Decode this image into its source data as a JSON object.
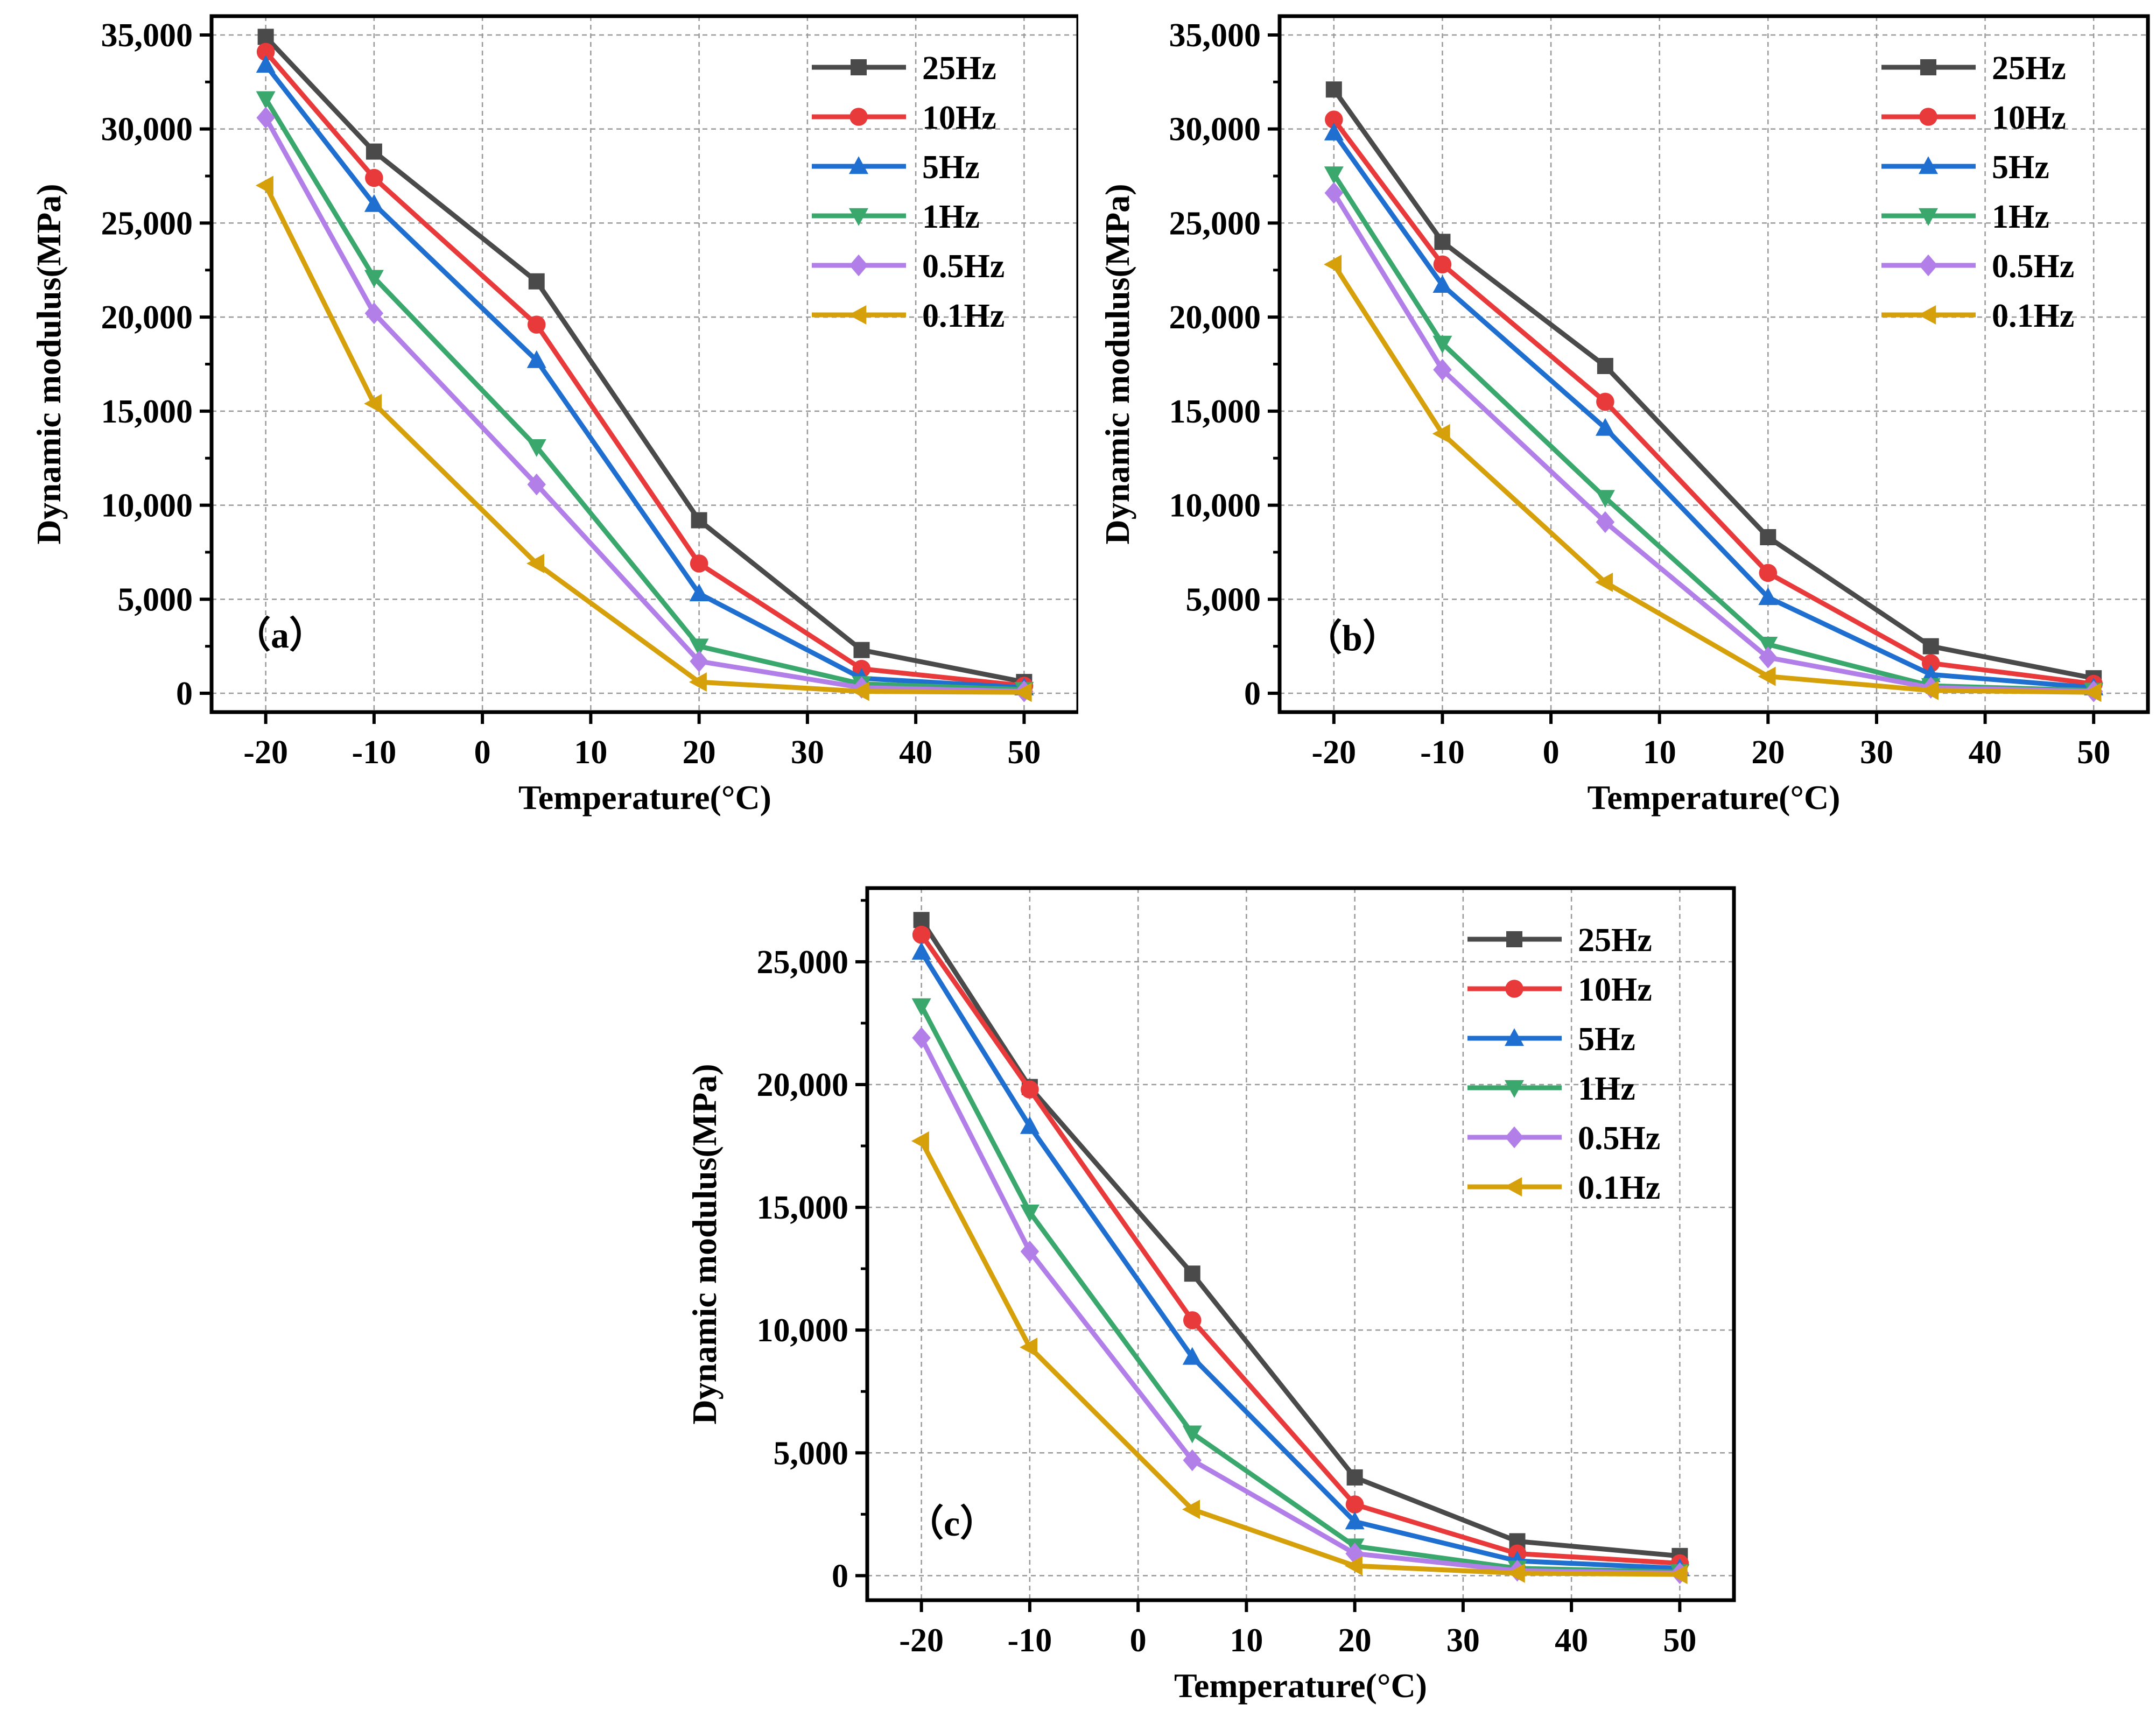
{
  "chart_data": [
    {
      "type": "line",
      "panel_label": "（a）",
      "xlabel": "Temperature(°C)",
      "ylabel": "Dynamic modulus(MPa)",
      "xlim": [
        -25,
        55
      ],
      "ylim": [
        -1000,
        36000
      ],
      "xticks": [
        -20,
        -10,
        0,
        10,
        20,
        30,
        40,
        50
      ],
      "yticks": [
        0,
        5000,
        10000,
        15000,
        20000,
        25000,
        30000,
        35000
      ],
      "ytick_labels": [
        "0",
        "5,000",
        "10,000",
        "15,000",
        "20,000",
        "25,000",
        "30,000",
        "35,000"
      ],
      "legend_position": "top-right",
      "grid": true,
      "x": [
        -20,
        -10,
        5,
        20,
        35,
        50
      ],
      "series": [
        {
          "name": "25Hz",
          "color": "#4a4a4a",
          "marker": "square",
          "values": [
            34900,
            28800,
            21900,
            9200,
            2300,
            600
          ]
        },
        {
          "name": "10Hz",
          "color": "#e8393b",
          "marker": "circle",
          "values": [
            34100,
            27400,
            19600,
            6900,
            1300,
            400
          ]
        },
        {
          "name": "5Hz",
          "color": "#1f6fd0",
          "marker": "triangle-up",
          "values": [
            33400,
            26000,
            17700,
            5300,
            800,
            300
          ]
        },
        {
          "name": "1Hz",
          "color": "#3aa76d",
          "marker": "triangle-down",
          "values": [
            31600,
            22100,
            13100,
            2500,
            500,
            200
          ]
        },
        {
          "name": "0.5Hz",
          "color": "#b27ee8",
          "marker": "diamond",
          "values": [
            30600,
            20200,
            11100,
            1700,
            300,
            100
          ]
        },
        {
          "name": "0.1Hz",
          "color": "#d6a00b",
          "marker": "triangle-left",
          "values": [
            27000,
            15400,
            6900,
            600,
            100,
            50
          ]
        }
      ]
    },
    {
      "type": "line",
      "panel_label": "（b）",
      "xlabel": "Temperature(°C)",
      "ylabel": "Dynamic modulus(MPa)",
      "xlim": [
        -25,
        55
      ],
      "ylim": [
        -1000,
        36000
      ],
      "xticks": [
        -20,
        -10,
        0,
        10,
        20,
        30,
        40,
        50
      ],
      "yticks": [
        0,
        5000,
        10000,
        15000,
        20000,
        25000,
        30000,
        35000
      ],
      "ytick_labels": [
        "0",
        "5,000",
        "10,000",
        "15,000",
        "20,000",
        "25,000",
        "30,000",
        "35,000"
      ],
      "legend_position": "top-right",
      "grid": true,
      "x": [
        -20,
        -10,
        5,
        20,
        35,
        50
      ],
      "series": [
        {
          "name": "25Hz",
          "color": "#4a4a4a",
          "marker": "square",
          "values": [
            32100,
            24000,
            17400,
            8300,
            2500,
            800
          ]
        },
        {
          "name": "10Hz",
          "color": "#e8393b",
          "marker": "circle",
          "values": [
            30500,
            22800,
            15500,
            6400,
            1600,
            500
          ]
        },
        {
          "name": "5Hz",
          "color": "#1f6fd0",
          "marker": "triangle-up",
          "values": [
            29800,
            21700,
            14100,
            5100,
            1000,
            300
          ]
        },
        {
          "name": "1Hz",
          "color": "#3aa76d",
          "marker": "triangle-down",
          "values": [
            27600,
            18600,
            10400,
            2600,
            400,
            150
          ]
        },
        {
          "name": "0.5Hz",
          "color": "#b27ee8",
          "marker": "diamond",
          "values": [
            26600,
            17200,
            9100,
            1900,
            300,
            100
          ]
        },
        {
          "name": "0.1Hz",
          "color": "#d6a00b",
          "marker": "triangle-left",
          "values": [
            22800,
            13800,
            5900,
            900,
            150,
            50
          ]
        }
      ]
    },
    {
      "type": "line",
      "panel_label": "（c）",
      "xlabel": "Temperature(°C)",
      "ylabel": "Dynamic modulus(MPa)",
      "xlim": [
        -25,
        55
      ],
      "ylim": [
        -1000,
        28000
      ],
      "xticks": [
        -20,
        -10,
        0,
        10,
        20,
        30,
        40,
        50
      ],
      "yticks": [
        0,
        5000,
        10000,
        15000,
        20000,
        25000
      ],
      "ytick_labels": [
        "0",
        "5,000",
        "10,000",
        "15,000",
        "20,000",
        "25,000"
      ],
      "legend_position": "top-right",
      "grid": true,
      "x": [
        -20,
        -10,
        5,
        20,
        35,
        50
      ],
      "series": [
        {
          "name": "25Hz",
          "color": "#4a4a4a",
          "marker": "square",
          "values": [
            26700,
            19900,
            12300,
            4000,
            1400,
            800
          ]
        },
        {
          "name": "10Hz",
          "color": "#e8393b",
          "marker": "circle",
          "values": [
            26100,
            19800,
            10400,
            2900,
            900,
            500
          ]
        },
        {
          "name": "5Hz",
          "color": "#1f6fd0",
          "marker": "triangle-up",
          "values": [
            25400,
            18300,
            8900,
            2200,
            600,
            300
          ]
        },
        {
          "name": "1Hz",
          "color": "#3aa76d",
          "marker": "triangle-down",
          "values": [
            23200,
            14800,
            5800,
            1200,
            300,
            150
          ]
        },
        {
          "name": "0.5Hz",
          "color": "#b27ee8",
          "marker": "diamond",
          "values": [
            21900,
            13200,
            4700,
            900,
            200,
            100
          ]
        },
        {
          "name": "0.1Hz",
          "color": "#d6a00b",
          "marker": "triangle-left",
          "values": [
            17700,
            9300,
            2700,
            400,
            100,
            50
          ]
        }
      ]
    }
  ]
}
